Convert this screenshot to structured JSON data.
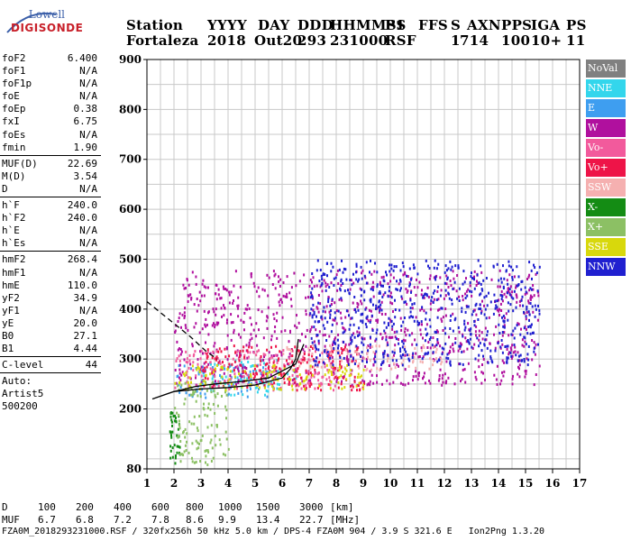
{
  "logo": {
    "line1": "Lowell",
    "line2": "DIGISONDE"
  },
  "header": {
    "labels": [
      "Station",
      "YYYY",
      "DAY",
      "DDD",
      "HHMMSS",
      "P1",
      "FFS",
      "S",
      "AXN",
      "PPS",
      "IGA",
      "PS"
    ],
    "values": [
      "Fortaleza",
      "2018",
      "Out20",
      "293",
      "231000",
      "RSF",
      "",
      "1",
      "714",
      "100",
      "10+",
      "11"
    ]
  },
  "params": {
    "group1": [
      {
        "label": "foF2",
        "value": "6.400"
      },
      {
        "label": "foF1",
        "value": "N/A"
      },
      {
        "label": "foF1p",
        "value": "N/A"
      },
      {
        "label": "foE",
        "value": "N/A"
      },
      {
        "label": "foEp",
        "value": "0.38"
      },
      {
        "label": "fxI",
        "value": "6.75"
      },
      {
        "label": "foEs",
        "value": "N/A"
      },
      {
        "label": "fmin",
        "value": "1.90"
      }
    ],
    "group2": [
      {
        "label": "MUF(D)",
        "value": "22.69"
      },
      {
        "label": "M(D)",
        "value": "3.54"
      },
      {
        "label": "D",
        "value": "N/A"
      }
    ],
    "group3": [
      {
        "label": "h`F",
        "value": "240.0"
      },
      {
        "label": "h`F2",
        "value": "240.0"
      },
      {
        "label": "h`E",
        "value": "N/A"
      },
      {
        "label": "h`Es",
        "value": "N/A"
      }
    ],
    "group4": [
      {
        "label": "hmF2",
        "value": "268.4"
      },
      {
        "label": "hmF1",
        "value": "N/A"
      },
      {
        "label": "hmE",
        "value": "110.0"
      },
      {
        "label": "yF2",
        "value": "34.9"
      },
      {
        "label": "yF1",
        "value": "N/A"
      },
      {
        "label": "yE",
        "value": "20.0"
      },
      {
        "label": "B0",
        "value": "27.1"
      },
      {
        "label": "B1",
        "value": "4.44"
      }
    ],
    "clevel": {
      "label": "C-level",
      "value": "44"
    },
    "auto": [
      "Auto:",
      "Artist5",
      "500200"
    ]
  },
  "legend": [
    {
      "label": "NoVal",
      "color": "#808080"
    },
    {
      "label": "NNE",
      "color": "#33d6ec"
    },
    {
      "label": "E",
      "color": "#3e9ef0"
    },
    {
      "label": "W",
      "color": "#b0109e"
    },
    {
      "label": "Vo-",
      "color": "#f25a9c"
    },
    {
      "label": "Vo+",
      "color": "#ee1448"
    },
    {
      "label": "SSW",
      "color": "#f5b0b0"
    },
    {
      "label": "X-",
      "color": "#148c14"
    },
    {
      "label": "X+",
      "color": "#8cc064"
    },
    {
      "label": "SSE",
      "color": "#d8d80c"
    },
    {
      "label": "NNW",
      "color": "#2020d0"
    }
  ],
  "mufTable": {
    "dLabel": "D",
    "mufLabel": "MUF",
    "distances": [
      "100",
      "200",
      "400",
      "600",
      "800",
      "1000",
      "1500",
      "3000"
    ],
    "distanceUnit": "[km]",
    "mufs": [
      "6.7",
      "6.8",
      "7.2",
      "7.8",
      "8.6",
      "9.9",
      "13.4",
      "22.7"
    ],
    "mufUnit": "[MHz]"
  },
  "footer": "FZA0M_2018293231000.RSF / 320fx256h 50 kHz 5.0 km / DPS-4 FZA0M 904 / 3.9 S 321.6 E   Ion2Png 1.3.20",
  "chart_data": {
    "type": "scatter",
    "title": "",
    "xlabel": "",
    "ylabel": "",
    "xlim": [
      1,
      17
    ],
    "ylim": [
      80,
      900
    ],
    "xticks": [
      1,
      2,
      3,
      4,
      5,
      6,
      7,
      8,
      9,
      10,
      11,
      12,
      13,
      14,
      15,
      16,
      17
    ],
    "yticks": [
      80,
      200,
      300,
      400,
      500,
      600,
      700,
      800,
      900
    ],
    "grid": true,
    "legend_position": "right",
    "echo_regions": [
      {
        "category": "NNE",
        "f": [
          3.0,
          6.5
        ],
        "h": [
          230,
          300
        ]
      },
      {
        "category": "E",
        "f": [
          2.0,
          5.5
        ],
        "h": [
          225,
          290
        ]
      },
      {
        "category": "W",
        "f": [
          2.0,
          15.5
        ],
        "h": [
          250,
          480
        ]
      },
      {
        "category": "Vo-",
        "f": [
          2.0,
          8.0
        ],
        "h": [
          240,
          320
        ]
      },
      {
        "category": "Vo+",
        "f": [
          3.0,
          9.0
        ],
        "h": [
          240,
          330
        ]
      },
      {
        "category": "SSW",
        "f": [
          6.0,
          12.0
        ],
        "h": [
          280,
          330
        ]
      },
      {
        "category": "X-",
        "f": [
          1.8,
          2.2
        ],
        "h": [
          90,
          200
        ]
      },
      {
        "category": "X+",
        "f": [
          2.0,
          4.0
        ],
        "h": [
          90,
          260
        ]
      },
      {
        "category": "SSE",
        "f": [
          2.0,
          9.0
        ],
        "h": [
          240,
          290
        ]
      },
      {
        "category": "NNW",
        "f": [
          7.0,
          15.5
        ],
        "h": [
          290,
          500
        ]
      }
    ],
    "traces": [
      {
        "name": "O-trace",
        "x": [
          1.2,
          2,
          3,
          4,
          5,
          6,
          6.3,
          6.5,
          6.6
        ],
        "y": [
          220,
          235,
          240,
          243,
          248,
          262,
          280,
          300,
          340
        ]
      },
      {
        "name": "X-trace",
        "x": [
          2.0,
          2.8,
          3.5,
          4.5,
          5.5,
          6.5,
          6.8
        ],
        "y": [
          235,
          245,
          250,
          255,
          262,
          290,
          330
        ]
      },
      {
        "name": "profile",
        "x": [
          1.0,
          1.8,
          2.6,
          3.2,
          3.6
        ],
        "y": [
          415,
          380,
          345,
          315,
          300
        ]
      }
    ]
  }
}
